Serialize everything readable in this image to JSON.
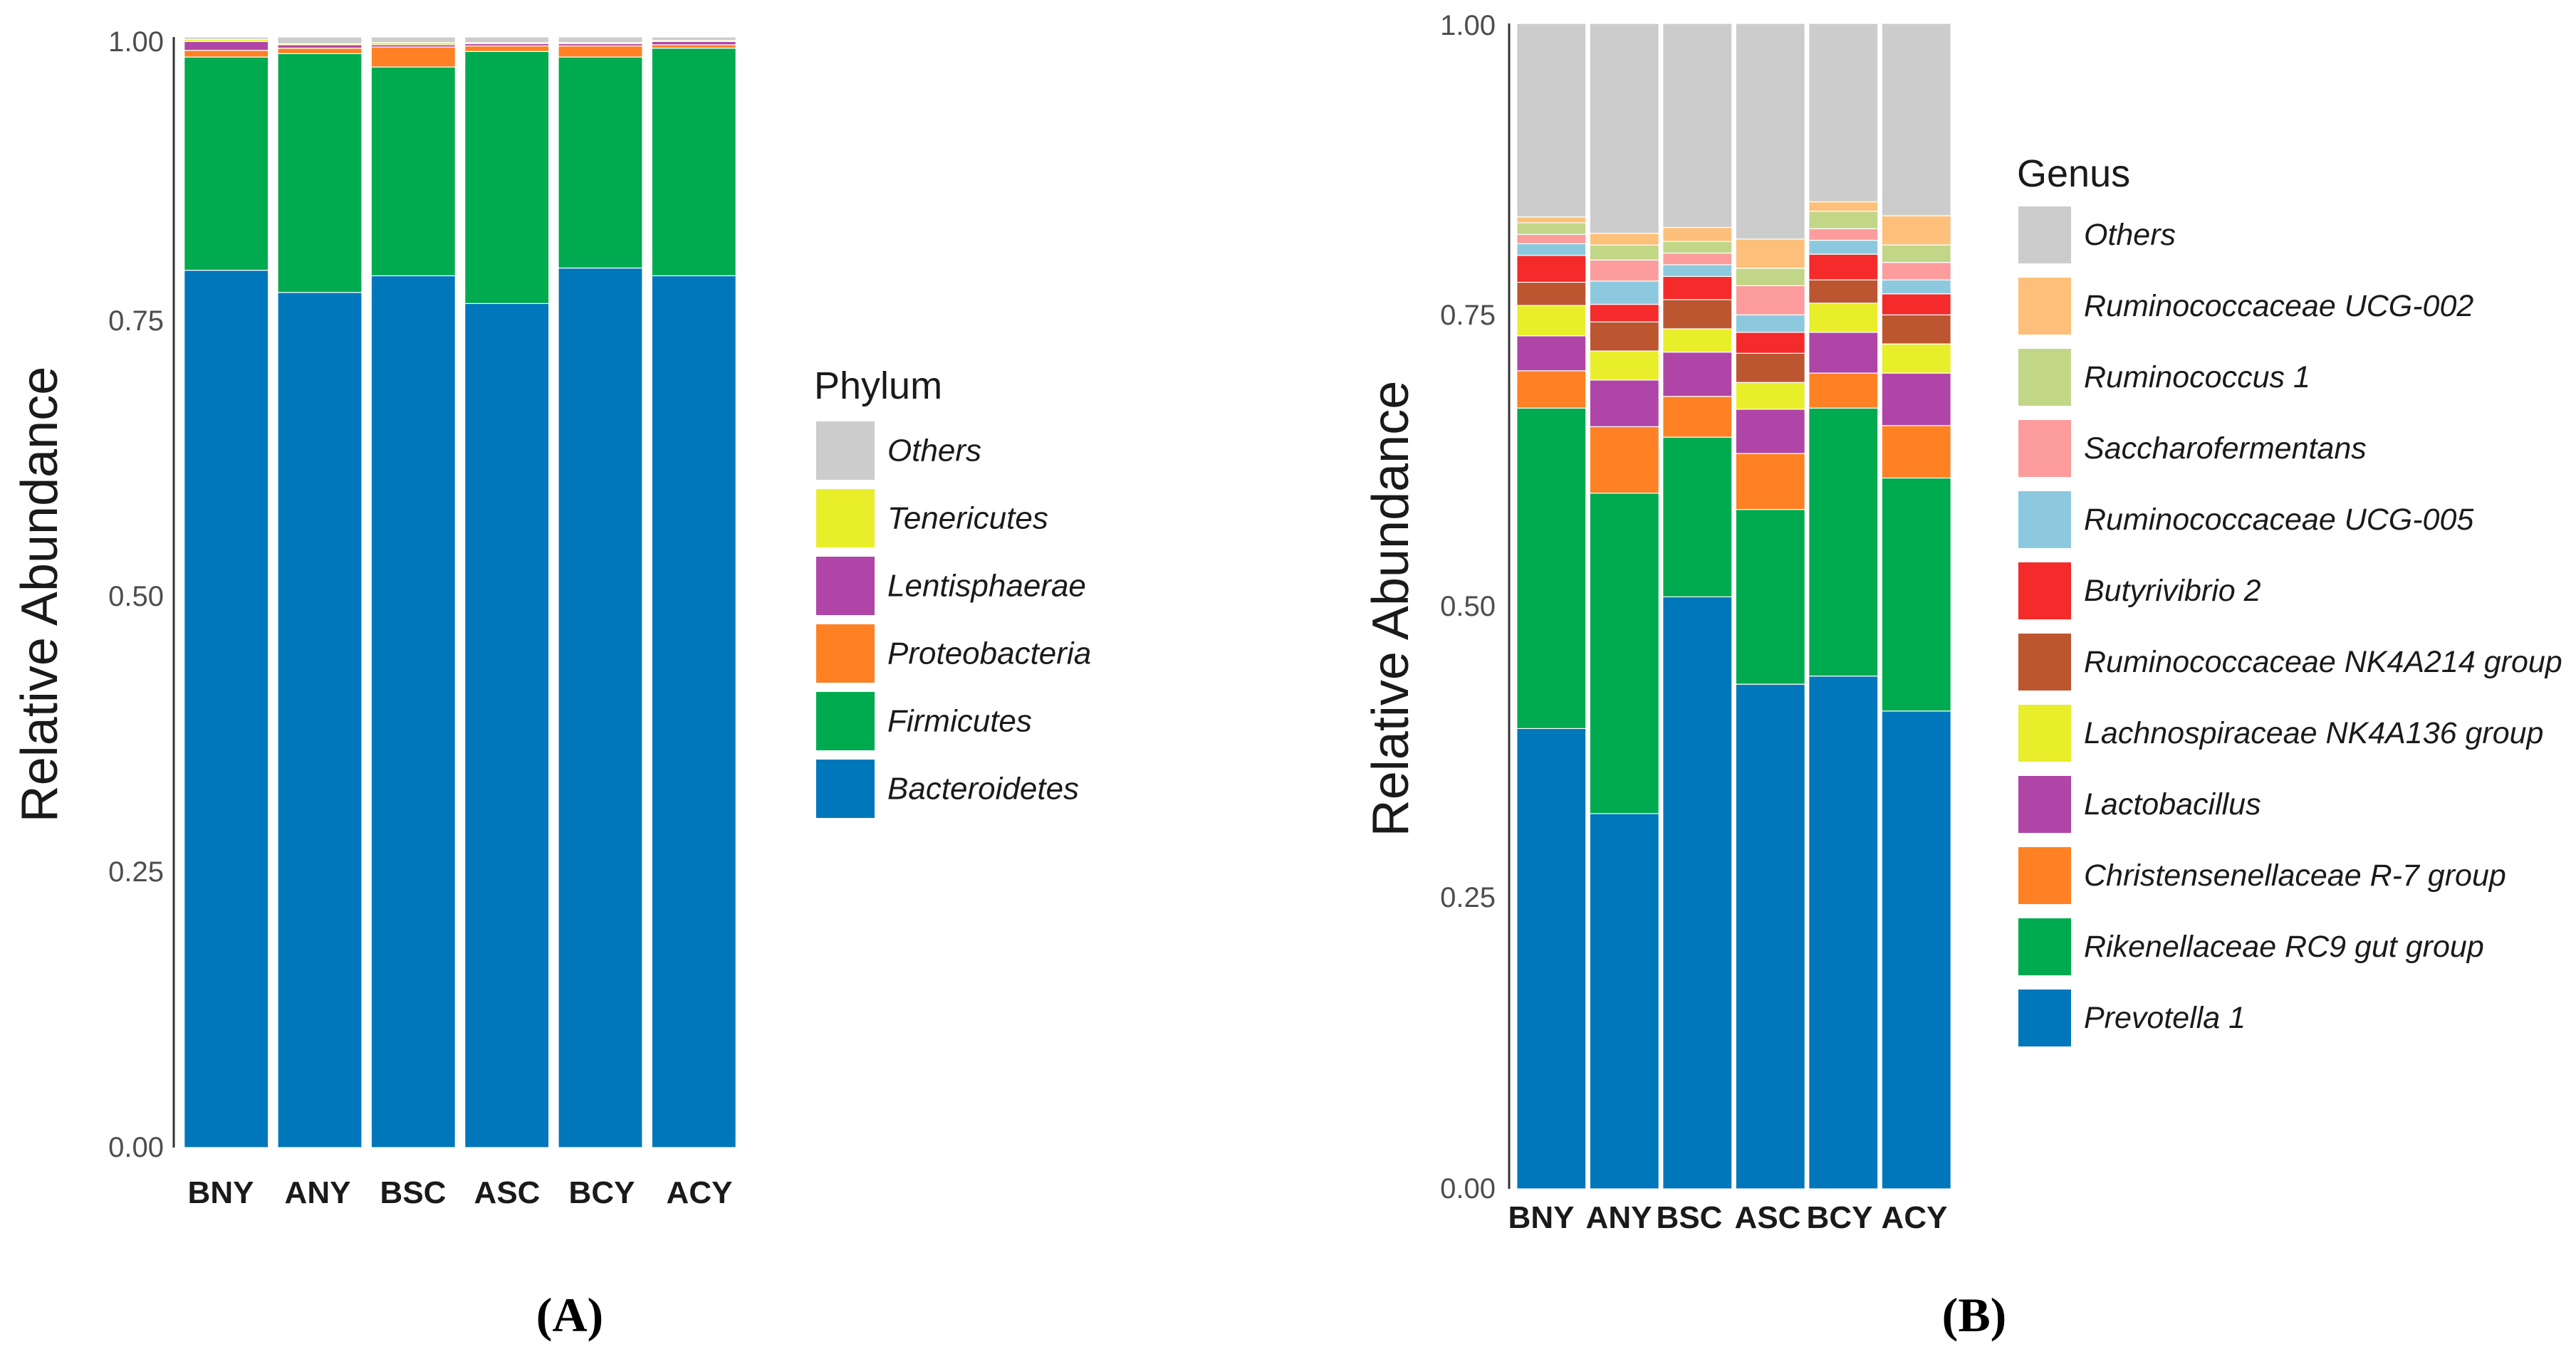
{
  "chart_data": [
    {
      "type": "bar",
      "stacked": true,
      "panel_label": "(A)",
      "ylabel": "Relative Abundance",
      "ylim": [
        0,
        1
      ],
      "yticks": [
        "0.00",
        "0.25",
        "0.50",
        "0.75",
        "1.00"
      ],
      "categories": [
        "BNY",
        "ANY",
        "BSC",
        "ASC",
        "BCY",
        "ACY"
      ],
      "legend": {
        "title": "Phylum",
        "position": "right"
      },
      "series": [
        {
          "name": "Bacteroidetes",
          "color": "#0077BB",
          "values": [
            0.79,
            0.77,
            0.785,
            0.76,
            0.792,
            0.785
          ]
        },
        {
          "name": "Firmicutes",
          "color": "#00AA4F",
          "values": [
            0.192,
            0.215,
            0.188,
            0.227,
            0.19,
            0.205
          ]
        },
        {
          "name": "Proteobacteria",
          "color": "#FF8124",
          "values": [
            0.006,
            0.005,
            0.018,
            0.005,
            0.01,
            0.003
          ]
        },
        {
          "name": "Lentisphaerae",
          "color": "#B045A8",
          "values": [
            0.008,
            0.003,
            0.002,
            0.002,
            0.002,
            0.003
          ]
        },
        {
          "name": "Tenericutes",
          "color": "#E8EE2A",
          "values": [
            0.002,
            0.001,
            0.002,
            0.001,
            0.001,
            0.001
          ]
        },
        {
          "name": "Others",
          "color": "#CCCCCC",
          "values": [
            0.002,
            0.006,
            0.005,
            0.005,
            0.005,
            0.003
          ]
        }
      ]
    },
    {
      "type": "bar",
      "stacked": true,
      "panel_label": "(B)",
      "ylabel": "Relative Abundance",
      "ylim": [
        0,
        1
      ],
      "yticks": [
        "0.00",
        "0.25",
        "0.50",
        "0.75",
        "1.00"
      ],
      "categories": [
        "BNY",
        "ANY",
        "BSC",
        "ASC",
        "BCY",
        "ACY"
      ],
      "legend": {
        "title": "Genus",
        "position": "right"
      },
      "series": [
        {
          "name": "Prevotella 1",
          "color": "#0077BB",
          "values": [
            0.395,
            0.322,
            0.508,
            0.433,
            0.44,
            0.41
          ]
        },
        {
          "name": "Rikenellaceae RC9 gut group",
          "color": "#00AA4F",
          "values": [
            0.275,
            0.275,
            0.137,
            0.15,
            0.23,
            0.2
          ]
        },
        {
          "name": "Christensenellaceae R-7 group",
          "color": "#FF8124",
          "values": [
            0.032,
            0.057,
            0.035,
            0.048,
            0.03,
            0.045
          ]
        },
        {
          "name": "Lactobacillus",
          "color": "#B045A8",
          "values": [
            0.03,
            0.04,
            0.038,
            0.038,
            0.035,
            0.045
          ]
        },
        {
          "name": "Lachnospiraceae NK4A136 group",
          "color": "#E8EE2A",
          "values": [
            0.026,
            0.025,
            0.02,
            0.023,
            0.025,
            0.025
          ]
        },
        {
          "name": "Ruminococcaceae NK4A214 group",
          "color": "#BC5630",
          "values": [
            0.02,
            0.025,
            0.025,
            0.025,
            0.02,
            0.025
          ]
        },
        {
          "name": "Butyrivibrio 2",
          "color": "#F52A2A",
          "values": [
            0.023,
            0.015,
            0.02,
            0.018,
            0.022,
            0.018
          ]
        },
        {
          "name": "Ruminococcaceae UCG-005",
          "color": "#8DC9DE",
          "values": [
            0.01,
            0.02,
            0.01,
            0.015,
            0.012,
            0.012
          ]
        },
        {
          "name": "Saccharofermentans",
          "color": "#FC9C9C",
          "values": [
            0.008,
            0.018,
            0.01,
            0.025,
            0.01,
            0.015
          ]
        },
        {
          "name": "Ruminococcus 1",
          "color": "#C2D688",
          "values": [
            0.01,
            0.013,
            0.01,
            0.015,
            0.015,
            0.015
          ]
        },
        {
          "name": "Ruminococcaceae UCG-002",
          "color": "#FCC07A",
          "values": [
            0.005,
            0.01,
            0.012,
            0.025,
            0.008,
            0.025
          ]
        },
        {
          "name": "Others",
          "color": "#CCCCCC",
          "values": [
            0.151,
            0.173,
            0.173,
            0.187,
            0.158,
            0.165
          ]
        }
      ]
    }
  ]
}
